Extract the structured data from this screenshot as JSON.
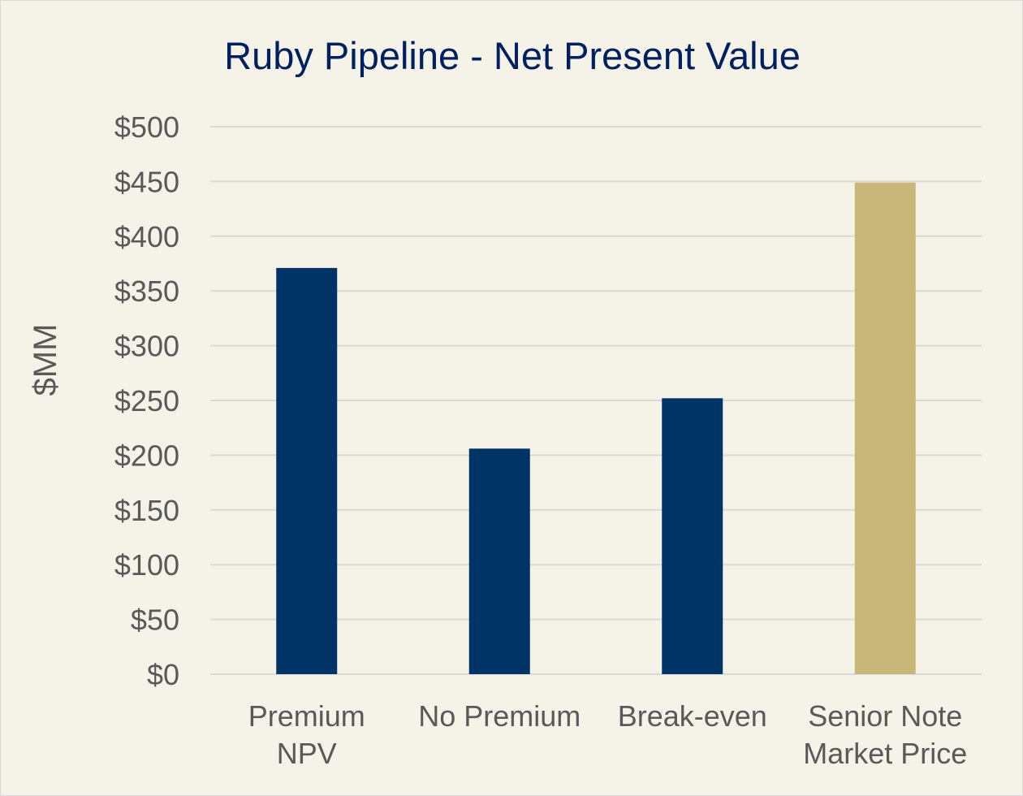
{
  "chart_data": {
    "type": "bar",
    "title": "Ruby Pipeline - Net Present Value",
    "xlabel": "",
    "ylabel": "$MM",
    "categories": [
      [
        "Premium",
        "NPV"
      ],
      [
        "No Premium"
      ],
      [
        "Break-even"
      ],
      [
        "Senior Note",
        "Market Price"
      ]
    ],
    "values": [
      371,
      206,
      252,
      449
    ],
    "bar_colors": [
      "#003366",
      "#003366",
      "#003366",
      "#C9B679"
    ],
    "ylim": [
      0,
      500
    ],
    "yticks": [
      0,
      50,
      100,
      150,
      200,
      250,
      300,
      350,
      400,
      450,
      500
    ],
    "ytick_labels": [
      "$0",
      "$50",
      "$100",
      "$150",
      "$200",
      "$250",
      "$300",
      "$350",
      "$400",
      "$450",
      "$500"
    ],
    "grid": true,
    "legend": "none"
  },
  "colors": {
    "background": "#F5F3E8",
    "gridline": "#D9D9D9",
    "title": "#002060",
    "text": "#595959"
  }
}
